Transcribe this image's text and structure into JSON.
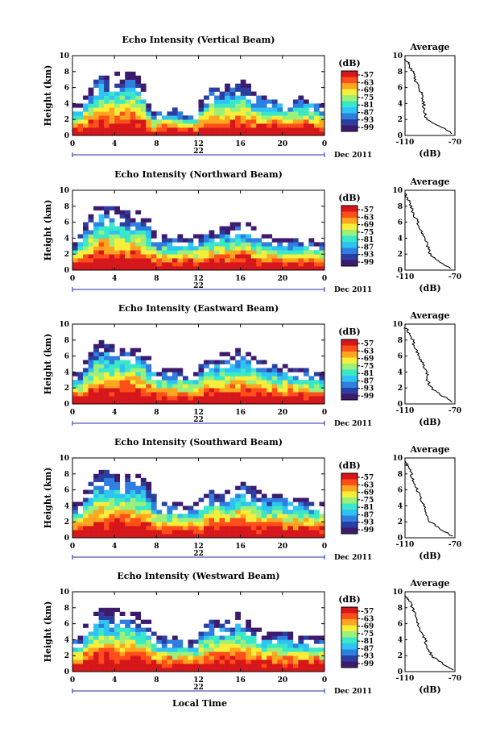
{
  "panels": [
    {
      "title": "Echo Intensity (Vertical Beam)",
      "day_label": "22"
    },
    {
      "title": "Echo Intensity (Northward Beam)",
      "day_label": "22"
    },
    {
      "title": "Echo Intensity (Eastward Beam)",
      "day_label": "22"
    },
    {
      "title": "Echo Intensity (Southward Beam)",
      "day_label": "22"
    },
    {
      "title": "Echo Intensity (Westward Beam)",
      "day_label": "22"
    }
  ],
  "heatmap_ylabel": "Height (km)",
  "date_label": "Dec 2011",
  "xlabel": "Local Time",
  "colorbar_title": "(dB)",
  "colorbar_ticks": [
    "-57",
    "-63",
    "-69",
    "-75",
    "-81",
    "-87",
    "-93",
    "-99"
  ],
  "avg_title": "Average",
  "avg_xlabel": "(dB)",
  "avg_xticks": [
    "-110",
    "-70"
  ],
  "x_ticks": [
    "0",
    "4",
    "8",
    "12",
    "16",
    "20",
    "0"
  ],
  "y_ticks": [
    "0",
    "2",
    "4",
    "6",
    "8",
    "10"
  ],
  "colors": {
    "scale": [
      "#3d1a6e",
      "#2a3fa0",
      "#2f7fe0",
      "#2ec3f2",
      "#38e8c8",
      "#9af07a",
      "#f6ef3a",
      "#ffa51f",
      "#ff4e1a",
      "#d6161a"
    ]
  },
  "chart_data": [
    {
      "type": "heatmap",
      "title": "Echo Intensity (Vertical Beam)",
      "ylabel": "Height (km)",
      "x_unit": "hour local time",
      "xlim": [
        0,
        24
      ],
      "ylim": [
        0,
        10
      ],
      "value_unit": "dB",
      "value_range": [
        -99,
        -57
      ],
      "echo_top_km": [
        [
          0.5,
          3.5
        ],
        [
          1.5,
          5.5
        ],
        [
          2.5,
          8.0
        ],
        [
          3.5,
          7.5
        ],
        [
          5.0,
          8.0
        ],
        [
          6.5,
          7.5
        ],
        [
          7.5,
          3.0
        ],
        [
          9.5,
          3.5
        ],
        [
          11.5,
          2.5
        ],
        [
          13.0,
          6.0
        ],
        [
          15.0,
          6.5
        ],
        [
          16.0,
          7.0
        ],
        [
          18.0,
          5.0
        ],
        [
          20.0,
          4.5
        ],
        [
          22.0,
          5.0
        ],
        [
          24.0,
          4.0
        ]
      ],
      "average_profile": {
        "title": "Average",
        "xlabel": "(dB)",
        "xlim": [
          -110,
          -70
        ],
        "ylim": [
          0,
          10
        ],
        "height_km": [
          0.2,
          1,
          2,
          3,
          4,
          5,
          6,
          7,
          8,
          9,
          9.6
        ],
        "value_db": [
          -72,
          -80,
          -92,
          -95,
          -95,
          -96,
          -99,
          -102,
          -104,
          -107,
          -110
        ]
      }
    },
    {
      "type": "heatmap",
      "title": "Echo Intensity (Northward Beam)",
      "ylabel": "Height (km)",
      "x_unit": "hour local time",
      "xlim": [
        0,
        24
      ],
      "ylim": [
        0,
        10
      ],
      "value_unit": "dB",
      "value_range": [
        -99,
        -57
      ],
      "echo_top_km": [
        [
          0.5,
          4.0
        ],
        [
          1.5,
          6.5
        ],
        [
          2.5,
          8.5
        ],
        [
          3.5,
          8.0
        ],
        [
          5.5,
          7.5
        ],
        [
          7.0,
          7.0
        ],
        [
          8.0,
          4.0
        ],
        [
          9.5,
          4.5
        ],
        [
          11.0,
          4.0
        ],
        [
          13.0,
          5.0
        ],
        [
          15.0,
          5.5
        ],
        [
          16.0,
          6.5
        ],
        [
          18.0,
          4.5
        ],
        [
          20.0,
          4.0
        ],
        [
          22.0,
          4.0
        ],
        [
          24.0,
          3.5
        ]
      ],
      "average_profile": {
        "title": "Average",
        "xlabel": "(dB)",
        "xlim": [
          -110,
          -70
        ],
        "ylim": [
          0,
          10
        ],
        "height_km": [
          0.2,
          1,
          2,
          3,
          4,
          5,
          6,
          7,
          8,
          9,
          9.6
        ],
        "value_db": [
          -73,
          -82,
          -90,
          -92,
          -94,
          -97,
          -100,
          -103,
          -105,
          -108,
          -110
        ]
      }
    },
    {
      "type": "heatmap",
      "title": "Echo Intensity (Eastward Beam)",
      "ylabel": "Height (km)",
      "x_unit": "hour local time",
      "xlim": [
        0,
        24
      ],
      "ylim": [
        0,
        10
      ],
      "value_unit": "dB",
      "value_range": [
        -99,
        -57
      ],
      "echo_top_km": [
        [
          0.5,
          3.5
        ],
        [
          1.5,
          6.0
        ],
        [
          2.5,
          8.0
        ],
        [
          3.5,
          7.5
        ],
        [
          5.5,
          7.5
        ],
        [
          7.0,
          6.5
        ],
        [
          8.0,
          4.0
        ],
        [
          9.5,
          4.5
        ],
        [
          11.5,
          4.0
        ],
        [
          13.0,
          6.0
        ],
        [
          15.0,
          6.5
        ],
        [
          16.0,
          7.0
        ],
        [
          18.0,
          5.5
        ],
        [
          20.0,
          5.0
        ],
        [
          22.0,
          4.5
        ],
        [
          24.0,
          4.0
        ]
      ],
      "average_profile": {
        "title": "Average",
        "xlabel": "(dB)",
        "xlim": [
          -110,
          -70
        ],
        "ylim": [
          0,
          10
        ],
        "height_km": [
          0.2,
          1,
          2,
          3,
          4,
          5,
          6,
          7,
          8,
          9,
          9.6
        ],
        "value_db": [
          -72,
          -80,
          -89,
          -92,
          -93,
          -96,
          -99,
          -102,
          -104,
          -107,
          -110
        ]
      }
    },
    {
      "type": "heatmap",
      "title": "Echo Intensity (Southward Beam)",
      "ylabel": "Height (km)",
      "x_unit": "hour local time",
      "xlim": [
        0,
        24
      ],
      "ylim": [
        0,
        10
      ],
      "value_unit": "dB",
      "value_range": [
        -99,
        -57
      ],
      "echo_top_km": [
        [
          0.5,
          4.0
        ],
        [
          1.5,
          6.5
        ],
        [
          2.5,
          8.5
        ],
        [
          3.5,
          8.5
        ],
        [
          5.5,
          8.0
        ],
        [
          7.0,
          7.5
        ],
        [
          8.0,
          4.5
        ],
        [
          9.5,
          4.5
        ],
        [
          11.5,
          4.0
        ],
        [
          13.0,
          6.0
        ],
        [
          15.0,
          6.0
        ],
        [
          16.0,
          7.5
        ],
        [
          18.0,
          5.5
        ],
        [
          20.0,
          5.5
        ],
        [
          22.0,
          5.0
        ],
        [
          24.0,
          4.5
        ]
      ],
      "average_profile": {
        "title": "Average",
        "xlabel": "(dB)",
        "xlim": [
          -110,
          -70
        ],
        "ylim": [
          0,
          10
        ],
        "height_km": [
          0.2,
          1,
          2,
          3,
          4,
          5,
          6,
          7,
          8,
          9,
          9.6
        ],
        "value_db": [
          -72,
          -81,
          -90,
          -93,
          -95,
          -97,
          -100,
          -103,
          -105,
          -108,
          -110
        ]
      }
    },
    {
      "type": "heatmap",
      "title": "Echo Intensity (Westward Beam)",
      "ylabel": "Height (km)",
      "x_unit": "hour local time",
      "xlim": [
        0,
        24
      ],
      "ylim": [
        0,
        10
      ],
      "value_unit": "dB",
      "value_range": [
        -99,
        -57
      ],
      "echo_top_km": [
        [
          0.5,
          4.0
        ],
        [
          1.5,
          6.5
        ],
        [
          2.5,
          8.0
        ],
        [
          3.5,
          8.0
        ],
        [
          5.5,
          7.5
        ],
        [
          7.0,
          7.0
        ],
        [
          8.0,
          4.5
        ],
        [
          9.5,
          4.5
        ],
        [
          11.5,
          4.0
        ],
        [
          13.0,
          6.5
        ],
        [
          15.0,
          6.5
        ],
        [
          16.0,
          7.5
        ],
        [
          18.0,
          5.0
        ],
        [
          20.0,
          5.0
        ],
        [
          22.0,
          4.5
        ],
        [
          24.0,
          4.5
        ]
      ],
      "average_profile": {
        "title": "Average",
        "xlabel": "(dB)",
        "xlim": [
          -110,
          -70
        ],
        "ylim": [
          0,
          10
        ],
        "height_km": [
          0.2,
          1,
          2,
          3,
          4,
          5,
          6,
          7,
          8,
          9,
          9.6
        ],
        "value_db": [
          -71,
          -80,
          -89,
          -92,
          -94,
          -97,
          -100,
          -102,
          -104,
          -107,
          -110
        ]
      }
    }
  ]
}
